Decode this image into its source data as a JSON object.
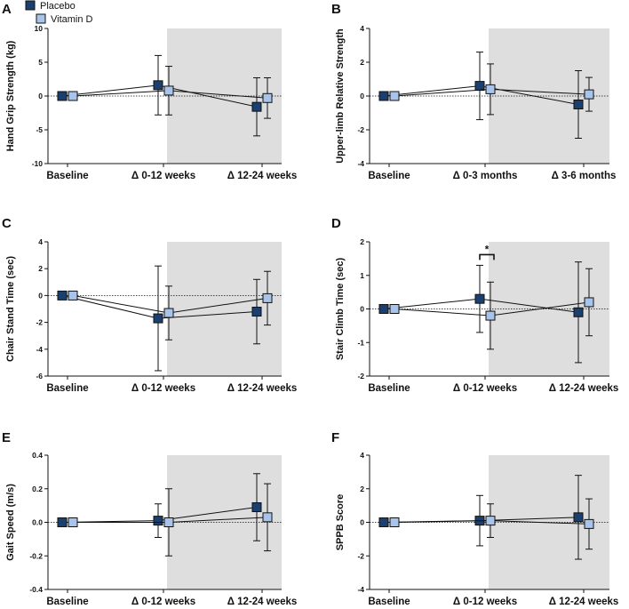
{
  "legend": {
    "placebo_label": "Placebo",
    "vitd_label": "Vitamin D"
  },
  "colors": {
    "placebo": "#1b3f6e",
    "vitd": "#a9c4ea",
    "shade": "#dedede",
    "line": "#111111"
  },
  "chart_data": [
    {
      "id": "A",
      "type": "line",
      "ylabel": "Hand Grip Strength (kg)",
      "categories": [
        "Baseline",
        "Δ 0-12 weeks",
        "Δ 12-24 weeks"
      ],
      "ylim": [
        -10,
        10
      ],
      "yticks": [
        -10,
        -5,
        0,
        5,
        10
      ],
      "significance": [],
      "series": [
        {
          "name": "Placebo",
          "values": [
            0,
            1.6,
            -1.6
          ],
          "err_low": [
            0,
            -2.8,
            -5.9
          ],
          "err_high": [
            0,
            6.0,
            2.7
          ]
        },
        {
          "name": "Vitamin D",
          "values": [
            0,
            0.8,
            -0.3
          ],
          "err_low": [
            0,
            -2.8,
            -3.3
          ],
          "err_high": [
            0,
            4.4,
            2.7
          ]
        }
      ]
    },
    {
      "id": "B",
      "type": "line",
      "ylabel": "Upper-limb Relative Strength",
      "categories": [
        "Baseline",
        "Δ 0-3 months",
        "Δ 3-6 months"
      ],
      "ylim": [
        -4,
        4
      ],
      "yticks": [
        -4,
        -2,
        0,
        2,
        4
      ],
      "significance": [],
      "series": [
        {
          "name": "Placebo",
          "values": [
            0,
            0.6,
            -0.5
          ],
          "err_low": [
            0,
            -1.4,
            -2.5
          ],
          "err_high": [
            0,
            2.6,
            1.5
          ]
        },
        {
          "name": "Vitamin D",
          "values": [
            0,
            0.4,
            0.1
          ],
          "err_low": [
            0,
            -1.1,
            -0.9
          ],
          "err_high": [
            0,
            1.9,
            1.1
          ]
        }
      ]
    },
    {
      "id": "C",
      "type": "line",
      "ylabel": "Chair Stand Time (sec)",
      "categories": [
        "Baseline",
        "Δ 0-12 weeks",
        "Δ 12-24 weeks"
      ],
      "ylim": [
        -6,
        4
      ],
      "yticks": [
        -6,
        -4,
        -2,
        0,
        2,
        4
      ],
      "significance": [],
      "series": [
        {
          "name": "Placebo",
          "values": [
            0,
            -1.7,
            -1.2
          ],
          "err_low": [
            0,
            -5.6,
            -3.6
          ],
          "err_high": [
            0,
            2.2,
            1.2
          ]
        },
        {
          "name": "Vitamin D",
          "values": [
            0,
            -1.3,
            -0.2
          ],
          "err_low": [
            0,
            -3.3,
            -2.2
          ],
          "err_high": [
            0,
            0.7,
            1.8
          ]
        }
      ]
    },
    {
      "id": "D",
      "type": "line",
      "ylabel": "Stair Climb Time (sec)",
      "categories": [
        "Baseline",
        "Δ 0-12 weeks",
        "Δ 12-24 weeks"
      ],
      "ylim": [
        -2,
        2
      ],
      "yticks": [
        -2,
        -1,
        0,
        1,
        2
      ],
      "significance": [
        {
          "category_index": 1,
          "label": "*"
        }
      ],
      "series": [
        {
          "name": "Placebo",
          "values": [
            0,
            0.3,
            -0.1
          ],
          "err_low": [
            0,
            -0.7,
            -1.6
          ],
          "err_high": [
            0,
            1.3,
            1.4
          ]
        },
        {
          "name": "Vitamin D",
          "values": [
            0,
            -0.2,
            0.2
          ],
          "err_low": [
            0,
            -1.2,
            -0.8
          ],
          "err_high": [
            0,
            0.8,
            1.2
          ]
        }
      ]
    },
    {
      "id": "E",
      "type": "line",
      "ylabel": "Gait Speed (m/s)",
      "categories": [
        "Baseline",
        "Δ 0-12 weeks",
        "Δ 12-24 weeks"
      ],
      "ylim": [
        -0.4,
        0.4
      ],
      "yticks": [
        -0.4,
        -0.2,
        0.0,
        0.2,
        0.4
      ],
      "significance": [],
      "series": [
        {
          "name": "Placebo",
          "values": [
            0,
            0.01,
            0.09
          ],
          "err_low": [
            0,
            -0.09,
            -0.11
          ],
          "err_high": [
            0,
            0.11,
            0.29
          ]
        },
        {
          "name": "Vitamin D",
          "values": [
            0,
            0.0,
            0.03
          ],
          "err_low": [
            0,
            -0.2,
            -0.17
          ],
          "err_high": [
            0,
            0.2,
            0.23
          ]
        }
      ]
    },
    {
      "id": "F",
      "type": "line",
      "ylabel": "SPPB Score",
      "categories": [
        "Baseline",
        "Δ 0-12 weeks",
        "Δ 12-24 weeks"
      ],
      "ylim": [
        -4,
        4
      ],
      "yticks": [
        -4,
        -2,
        0,
        2,
        4
      ],
      "significance": [],
      "series": [
        {
          "name": "Placebo",
          "values": [
            0,
            0.1,
            0.3
          ],
          "err_low": [
            0,
            -1.4,
            -2.2
          ],
          "err_high": [
            0,
            1.6,
            2.8
          ]
        },
        {
          "name": "Vitamin D",
          "values": [
            0,
            0.1,
            -0.1
          ],
          "err_low": [
            0,
            -0.9,
            -1.6
          ],
          "err_high": [
            0,
            1.1,
            1.4
          ]
        }
      ]
    }
  ]
}
